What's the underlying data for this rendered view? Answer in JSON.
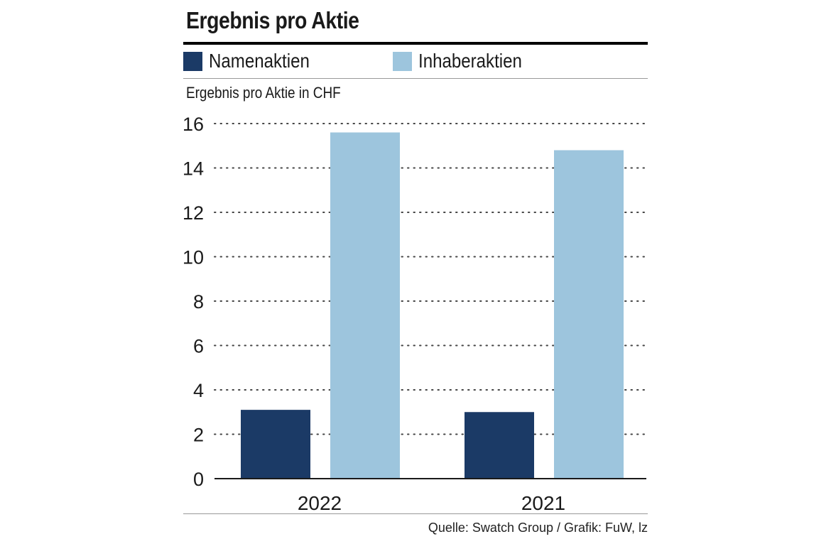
{
  "chart_data": {
    "type": "bar",
    "title": "Ergebnis pro Aktie",
    "ylabel": "Ergebnis pro Aktie in CHF",
    "xlabel": "",
    "categories": [
      "2022",
      "2021"
    ],
    "series": [
      {
        "name": "Namenaktien",
        "color": "#1b3a66",
        "values": [
          3.1,
          3.0
        ]
      },
      {
        "name": "Inhaberaktien",
        "color": "#9dc5dd",
        "values": [
          15.6,
          14.8
        ]
      }
    ],
    "ylim": [
      0,
      16
    ],
    "yticks": [
      0,
      2,
      4,
      6,
      8,
      10,
      12,
      14,
      16
    ],
    "grid": "dotted horizontal",
    "legend_position": "top-left"
  },
  "source": "Quelle: Swatch Group / Grafik: FuW, lz"
}
